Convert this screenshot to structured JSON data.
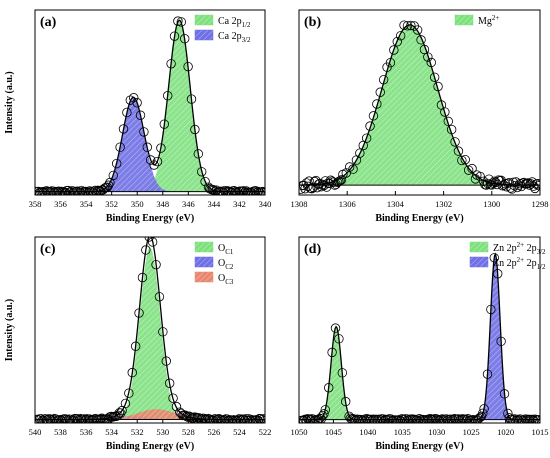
{
  "colors": {
    "green": "#7ee07e",
    "blue": "#6f6fe6",
    "red": "#e8876f",
    "fit_green": "#2e9e2e",
    "fit_blue": "#3030c0",
    "fit_red": "#c05030"
  },
  "chart_data": [
    {
      "type": "line",
      "panel_label": "(a)",
      "xlabel": "Binding Energy (eV)",
      "ylabel": "Intensity (a.u.)",
      "xlim": [
        358,
        340
      ],
      "x_reversed": true,
      "xticks": [
        358,
        356,
        354,
        352,
        350,
        348,
        346,
        344,
        342,
        340
      ],
      "ylim": [
        0,
        1.08
      ],
      "legend_position": "top-right",
      "legend": [
        {
          "main": "Ca 2p",
          "sub": "1/2",
          "sup": "",
          "color": "green"
        },
        {
          "main": "Ca 2p",
          "sub": "3/2",
          "sup": "",
          "color": "blue"
        }
      ],
      "baseline": 0.02,
      "peaks": [
        {
          "center": 346.7,
          "height": 1.0,
          "sigma": 0.85,
          "color": "green"
        },
        {
          "center": 350.3,
          "height": 0.55,
          "sigma": 0.85,
          "color": "blue"
        }
      ]
    },
    {
      "type": "line",
      "panel_label": "(b)",
      "xlabel": "Binding Energy (eV)",
      "ylabel": "",
      "xlim": [
        1308,
        1298
      ],
      "x_reversed": true,
      "xticks": [
        1308,
        1306,
        1304,
        1302,
        1300,
        1298
      ],
      "ylim": [
        0,
        1.12
      ],
      "legend_position": "top-right",
      "legend": [
        {
          "main": "Mg",
          "sub": "",
          "sup": "2+",
          "color": "green"
        }
      ],
      "baseline": 0.06,
      "peaks": [
        {
          "center": 1303.4,
          "height": 0.97,
          "sigma": 1.15,
          "color": "green"
        }
      ]
    },
    {
      "type": "line",
      "panel_label": "(c)",
      "xlabel": "Binding Energy (eV)",
      "ylabel": "Intensity (a.u.)",
      "xlim": [
        540,
        522
      ],
      "x_reversed": true,
      "xticks": [
        540,
        538,
        536,
        534,
        532,
        530,
        528,
        526,
        524,
        522
      ],
      "ylim": [
        0,
        1.08
      ],
      "legend_position": "top-right",
      "legend": [
        {
          "main": "O",
          "sub": "C1",
          "sup": "",
          "color": "green"
        },
        {
          "main": "O",
          "sub": "C2",
          "sup": "",
          "color": "blue"
        },
        {
          "main": "O",
          "sub": "C3",
          "sup": "",
          "color": "red"
        }
      ],
      "baseline": 0.02,
      "peaks": [
        {
          "center": 531.0,
          "height": 1.0,
          "sigma": 0.8,
          "color": "green"
        },
        {
          "center": 532.4,
          "height": 0.02,
          "sigma": 1.2,
          "color": "blue"
        },
        {
          "center": 530.5,
          "height": 0.06,
          "sigma": 1.5,
          "color": "red"
        }
      ]
    },
    {
      "type": "line",
      "panel_label": "(d)",
      "xlabel": "Binding Energy (eV)",
      "ylabel": "",
      "xlim": [
        1050,
        1015
      ],
      "x_reversed": true,
      "xticks": [
        1050,
        1045,
        1040,
        1035,
        1030,
        1025,
        1020,
        1015
      ],
      "ylim": [
        0,
        1.1
      ],
      "legend_position": "top-right",
      "legend": [
        {
          "main": "Zn 2p",
          "sub": "3/2",
          "sup": "2+",
          "mid": " 2p",
          "color": "green"
        },
        {
          "main": "Zn 2p",
          "sub": "1/2",
          "sup": "2+",
          "mid": " 2p",
          "color": "blue"
        }
      ],
      "baseline": 0.02,
      "peaks": [
        {
          "center": 1044.6,
          "height": 0.55,
          "sigma": 0.75,
          "color": "green"
        },
        {
          "center": 1021.5,
          "height": 0.98,
          "sigma": 0.7,
          "color": "blue"
        }
      ]
    }
  ]
}
